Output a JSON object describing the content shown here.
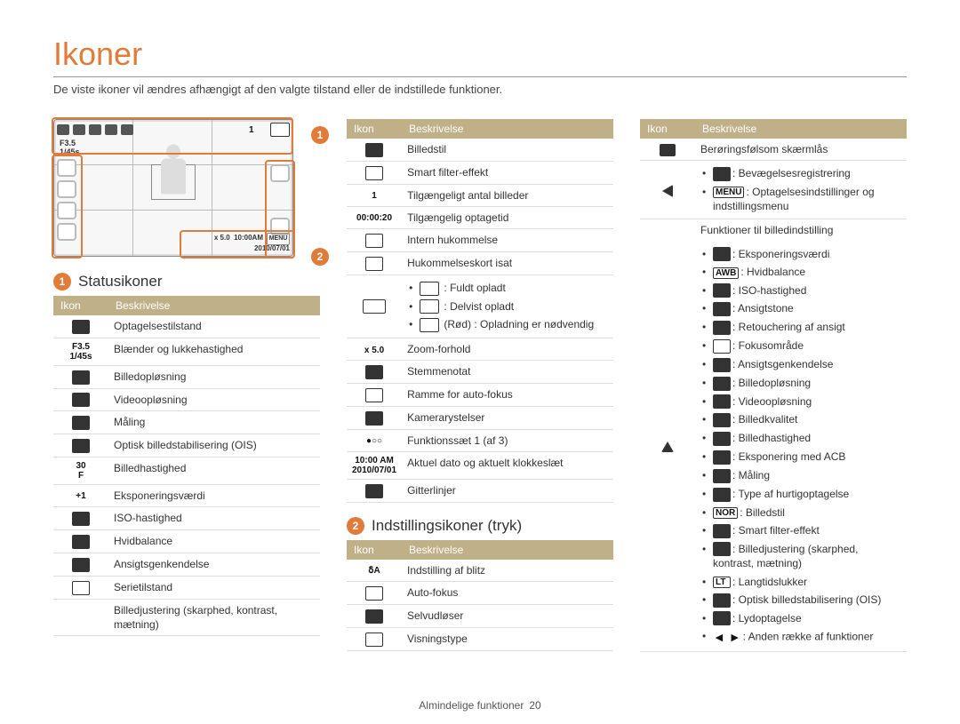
{
  "page": {
    "title": "Ikoner",
    "subtitle": "De viste ikoner vil ændres afhængigt af den valgte tilstand eller de indstillede funktioner.",
    "footer_label": "Almindelige funktioner",
    "footer_page": "20"
  },
  "colors": {
    "accent": "#e07b3a",
    "header_bg": "#c0b088"
  },
  "screen": {
    "aperture_line1": "F3.5",
    "aperture_line2": "1/45s",
    "zoom_prefix": "x 5.0",
    "time": "10:00AM",
    "date": "2010/07/01",
    "menu_label": "MENU"
  },
  "sections": {
    "status_title": "Statusikoner",
    "settings_title": "Indstillingsikoner (tryk)"
  },
  "table_headers": {
    "icon": "Ikon",
    "desc": "Beskrivelse"
  },
  "status_rows": [
    {
      "icon_type": "solid",
      "icon_text": "",
      "desc": "Optagelsestilstand"
    },
    {
      "icon_type": "text",
      "icon_text": "F3.5\n1/45s",
      "desc": "Blænder og lukkehastighed"
    },
    {
      "icon_type": "solid",
      "icon_text": "",
      "desc": "Billedopløsning"
    },
    {
      "icon_type": "solid",
      "icon_text": "",
      "desc": "Videoopløsning"
    },
    {
      "icon_type": "solid",
      "icon_text": "",
      "desc": "Måling"
    },
    {
      "icon_type": "solid",
      "icon_text": "",
      "desc": "Optisk billedstabilisering (OIS)"
    },
    {
      "icon_type": "text",
      "icon_text": "30\nF",
      "desc": "Billedhastighed"
    },
    {
      "icon_type": "text",
      "icon_text": "+1",
      "desc": "Eksponeringsværdi"
    },
    {
      "icon_type": "solid",
      "icon_text": "",
      "desc": "ISO-hastighed"
    },
    {
      "icon_type": "solid",
      "icon_text": "",
      "desc": "Hvidbalance"
    },
    {
      "icon_type": "solid",
      "icon_text": "",
      "desc": "Ansigtsgenkendelse"
    },
    {
      "icon_type": "outline",
      "icon_text": "",
      "desc": "Serietilstand"
    },
    {
      "icon_type": "blank",
      "icon_text": "",
      "desc": "Billedjustering (skarphed, kontrast, mætning)"
    }
  ],
  "status_rows2": [
    {
      "icon_type": "solid",
      "icon_text": "",
      "desc": "Billedstil"
    },
    {
      "icon_type": "outline",
      "icon_text": "",
      "desc": "Smart filter-effekt"
    },
    {
      "icon_type": "text",
      "icon_text": "1",
      "desc": "Tilgængeligt antal billeder"
    },
    {
      "icon_type": "text",
      "icon_text": "00:00:20",
      "desc": "Tilgængelig optagetid"
    },
    {
      "icon_type": "outline",
      "icon_text": "",
      "desc": "Intern hukommelse"
    },
    {
      "icon_type": "outline",
      "icon_text": "",
      "desc": "Hukommelseskort isat"
    }
  ],
  "battery": {
    "b1": ": Fuldt opladt",
    "b2": ": Delvist opladt",
    "b3": "(Rød) : Opladning er nødvendig"
  },
  "status_rows2b": [
    {
      "icon_type": "text",
      "icon_text": "x 5.0",
      "desc": "Zoom-forhold"
    },
    {
      "icon_type": "solid",
      "icon_text": "",
      "desc": "Stemmenotat"
    },
    {
      "icon_type": "outline",
      "icon_text": "",
      "desc": "Ramme for auto-fokus"
    },
    {
      "icon_type": "solid",
      "icon_text": "",
      "desc": "Kamerarystelser"
    },
    {
      "icon_type": "text",
      "icon_text": "●○○",
      "desc": "Funktionssæt 1 (af 3)"
    },
    {
      "icon_type": "text",
      "icon_text": "10:00 AM\n2010/07/01",
      "desc": "Aktuel dato og aktuelt klokkeslæt"
    },
    {
      "icon_type": "solid",
      "icon_text": "",
      "desc": "Gitterlinjer"
    }
  ],
  "settings_rows": [
    {
      "icon_type": "text",
      "icon_text": "ẟA",
      "desc": "Indstilling af blitz"
    },
    {
      "icon_type": "outline",
      "icon_text": "",
      "desc": "Auto-fokus"
    },
    {
      "icon_type": "solid",
      "icon_text": "",
      "desc": "Selvudløser"
    },
    {
      "icon_type": "outline",
      "icon_text": "",
      "desc": "Visningstype"
    }
  ],
  "col3_rows": [
    {
      "icon_type": "key",
      "desc": "Berøringsfølsom skærmlås"
    }
  ],
  "left_group": {
    "b1_inner": ": Bevægelsesregistrering",
    "b2_prefix": "MENU",
    "b2_rest": ": Optagelsesindstillinger og indstillingsmenu"
  },
  "func_header": "Funktioner til billedindstilling",
  "func_items": [
    ": Eksponeringsværdi",
    ": Hvidbalance",
    ": ISO-hastighed",
    ": Ansigtstone",
    ": Retouchering af ansigt",
    ": Fokusområde",
    ": Ansigtsgenkendelse",
    ": Billedopløsning",
    ": Videoopløsning",
    ": Billedkvalitet",
    ": Billedhastighed",
    ": Eksponering med ACB",
    ": Måling",
    ": Type af hurtigoptagelse",
    ": Billedstil",
    ": Smart filter-effekt",
    ": Billedjustering (skarphed, kontrast, mætning)",
    ": Langtidslukker",
    ": Optisk billedstabilisering (OIS)",
    ": Lydoptagelse",
    ": Anden række af funktioner"
  ],
  "func_icon_text": [
    "",
    "AWB",
    "",
    "",
    "",
    "",
    "",
    "",
    "",
    "",
    "",
    "",
    "",
    "",
    "NOR",
    "",
    "",
    "LT",
    "",
    "",
    ""
  ],
  "func_icon_outline": [
    false,
    true,
    false,
    false,
    false,
    true,
    false,
    false,
    false,
    false,
    false,
    false,
    false,
    false,
    true,
    false,
    false,
    false,
    false,
    false,
    false
  ],
  "func_icon_arrow_last": true
}
